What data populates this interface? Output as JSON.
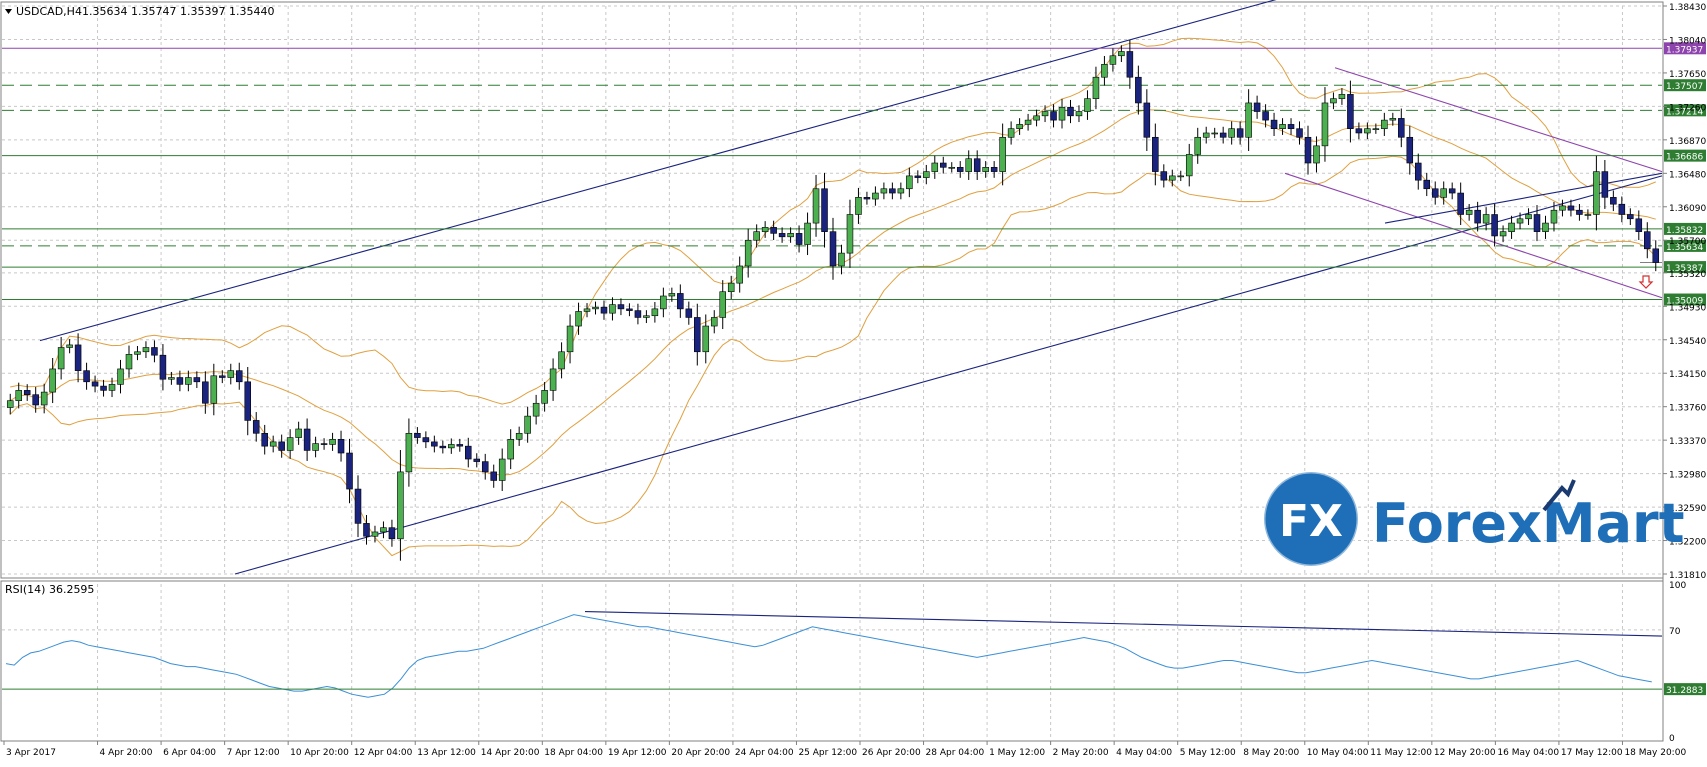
{
  "header": {
    "symbol": "USDCAD,H4",
    "ohlc": "1.35634 1.35747 1.35397 1.35440"
  },
  "rsi_header": "RSI(14) 36.2595",
  "logo": {
    "fx": "FX",
    "text": "ForexMart"
  },
  "colors": {
    "bull": "#4caf50",
    "bear": "#1a237e",
    "bands": "#e0a040",
    "channel": "#1a237e",
    "purple": "#8e44ad",
    "level": "#2e7d32",
    "rsi": "#3b8fd6"
  },
  "chart_data": [
    {
      "type": "candlestick",
      "title": "USDCAD,H4",
      "ylim": [
        1.3181,
        1.3843
      ],
      "y_ticks": [
        "1.38430",
        "1.38040",
        "1.37650",
        "1.37260",
        "1.36870",
        "1.36480",
        "1.36090",
        "1.35700",
        "1.35320",
        "1.34930",
        "1.34540",
        "1.34150",
        "1.33760",
        "1.33370",
        "1.32980",
        "1.32590",
        "1.32200",
        "1.31810"
      ],
      "x_labels": [
        "3 Apr 2017",
        "4 Apr 20:00",
        "6 Apr 04:00",
        "7 Apr 12:00",
        "10 Apr 20:00",
        "12 Apr 04:00",
        "13 Apr 12:00",
        "14 Apr 20:00",
        "18 Apr 04:00",
        "19 Apr 12:00",
        "20 Apr 20:00",
        "24 Apr 04:00",
        "25 Apr 12:00",
        "26 Apr 20:00",
        "28 Apr 04:00",
        "1 May 12:00",
        "2 May 20:00",
        "4 May 04:00",
        "5 May 12:00",
        "8 May 20:00",
        "10 May 04:00",
        "11 May 12:00",
        "12 May 20:00",
        "16 May 04:00",
        "17 May 12:00",
        "18 May 20:00"
      ],
      "levels": [
        {
          "value": 1.37937,
          "label": "1.37937",
          "style": "solid",
          "color": "#8e44ad"
        },
        {
          "value": 1.37507,
          "label": "1.37507",
          "style": "dashed",
          "color": "#2e7d32"
        },
        {
          "value": 1.37214,
          "label": "1.37214",
          "style": "dashed",
          "color": "#2e7d32"
        },
        {
          "value": 1.36686,
          "label": "1.36686",
          "style": "solid",
          "color": "#2e7d32"
        },
        {
          "value": 1.35832,
          "label": "1.35832",
          "style": "solid",
          "color": "#2e7d32"
        },
        {
          "value": 1.35634,
          "label": "1.35634",
          "style": "dashed",
          "color": "#2e7d32"
        },
        {
          "value": 1.35387,
          "label": "1.35387",
          "style": "solid",
          "color": "#2e7d32"
        },
        {
          "value": 1.35009,
          "label": "1.35009",
          "style": "solid",
          "color": "#2e7d32"
        }
      ],
      "current_price": "1.35440",
      "closes": [
        1.3383,
        1.3395,
        1.339,
        1.3378,
        1.3393,
        1.342,
        1.3445,
        1.3448,
        1.3418,
        1.3405,
        1.34,
        1.3395,
        1.3402,
        1.342,
        1.3437,
        1.344,
        1.3445,
        1.3436,
        1.3408,
        1.341,
        1.3402,
        1.341,
        1.3405,
        1.338,
        1.3412,
        1.341,
        1.3418,
        1.3405,
        1.336,
        1.3345,
        1.333,
        1.3335,
        1.3325,
        1.334,
        1.335,
        1.3325,
        1.3333,
        1.3332,
        1.3338,
        1.3322,
        1.328,
        1.324,
        1.3225,
        1.323,
        1.3235,
        1.3222,
        1.33,
        1.3345,
        1.334,
        1.3335,
        1.333,
        1.3328,
        1.3332,
        1.333,
        1.3315,
        1.3312,
        1.33,
        1.329,
        1.3315,
        1.3338,
        1.3345,
        1.3365,
        1.338,
        1.3395,
        1.342,
        1.344,
        1.347,
        1.3487,
        1.349,
        1.3492,
        1.3485,
        1.3495,
        1.349,
        1.3488,
        1.348,
        1.3482,
        1.349,
        1.3505,
        1.3508,
        1.349,
        1.348,
        1.344,
        1.347,
        1.348,
        1.351,
        1.352,
        1.354,
        1.357,
        1.358,
        1.3585,
        1.3578,
        1.3574,
        1.3578,
        1.3565,
        1.359,
        1.363,
        1.358,
        1.354,
        1.3555,
        1.36,
        1.362,
        1.3618,
        1.3625,
        1.363,
        1.3625,
        1.363,
        1.3645,
        1.3643,
        1.365,
        1.366,
        1.3655,
        1.3655,
        1.365,
        1.3665,
        1.365,
        1.3655,
        1.365,
        1.369,
        1.37,
        1.3705,
        1.371,
        1.3715,
        1.372,
        1.371,
        1.3725,
        1.3715,
        1.372,
        1.3735,
        1.376,
        1.3775,
        1.3785,
        1.379,
        1.376,
        1.373,
        1.369,
        1.365,
        1.364,
        1.3645,
        1.3645,
        1.367,
        1.369,
        1.3695,
        1.3695,
        1.369,
        1.37,
        1.369,
        1.373,
        1.372,
        1.371,
        1.37,
        1.3705,
        1.37,
        1.369,
        1.366,
        1.368,
        1.373,
        1.3735,
        1.374,
        1.37,
        1.3695,
        1.37,
        1.37,
        1.371,
        1.3712,
        1.369,
        1.366,
        1.364,
        1.363,
        1.362,
        1.363,
        1.3625,
        1.36,
        1.3605,
        1.359,
        1.36,
        1.3575,
        1.358,
        1.359,
        1.3595,
        1.36,
        1.358,
        1.359,
        1.3605,
        1.361,
        1.3605,
        1.36,
        1.36,
        1.365,
        1.362,
        1.3612,
        1.36,
        1.3595,
        1.358,
        1.356,
        1.3544
      ],
      "bands": {
        "period": 20
      }
    },
    {
      "type": "line",
      "title": "RSI(14) 36.2595",
      "ylim": [
        0,
        100
      ],
      "y_ticks": [
        "100",
        "70",
        "0"
      ],
      "levels": [
        {
          "value": 31.2883,
          "label": "31.2883"
        }
      ],
      "values": [
        48,
        47,
        52,
        55,
        56,
        58,
        60,
        62,
        63,
        62,
        60,
        59,
        58,
        57,
        56,
        55,
        54,
        53,
        52,
        50,
        48,
        47,
        46,
        46,
        45,
        44,
        43,
        42,
        41,
        39,
        37,
        35,
        33,
        32,
        31,
        30,
        30,
        31,
        32,
        33,
        32,
        30,
        28,
        27,
        26,
        27,
        28,
        32,
        38,
        45,
        50,
        52,
        53,
        54,
        55,
        56,
        56,
        57,
        58,
        60,
        62,
        64,
        66,
        68,
        70,
        72,
        74,
        76,
        78,
        80,
        79,
        78,
        77,
        76,
        75,
        74,
        73,
        72,
        72,
        71,
        70,
        69,
        68,
        67,
        66,
        65,
        64,
        63,
        62,
        61,
        60,
        59,
        60,
        62,
        64,
        66,
        68,
        70,
        72,
        71,
        70,
        69,
        68,
        67,
        66,
        65,
        64,
        63,
        62,
        61,
        60,
        59,
        58,
        57,
        56,
        55,
        54,
        53,
        52,
        53,
        54,
        55,
        56,
        57,
        58,
        59,
        60,
        61,
        62,
        63,
        64,
        65,
        64,
        63,
        62,
        60,
        58,
        55,
        52,
        50,
        48,
        46,
        45,
        45,
        46,
        47,
        48,
        49,
        50,
        50,
        49,
        48,
        47,
        46,
        45,
        44,
        43,
        42,
        42,
        43,
        44,
        45,
        46,
        47,
        48,
        49,
        50,
        49,
        48,
        47,
        46,
        45,
        44,
        43,
        42,
        41,
        40,
        39,
        38,
        38,
        39,
        40,
        41,
        42,
        43,
        44,
        45,
        46,
        47,
        48,
        49,
        50,
        48,
        46,
        44,
        42,
        40,
        39,
        38,
        37,
        36
      ]
    }
  ]
}
